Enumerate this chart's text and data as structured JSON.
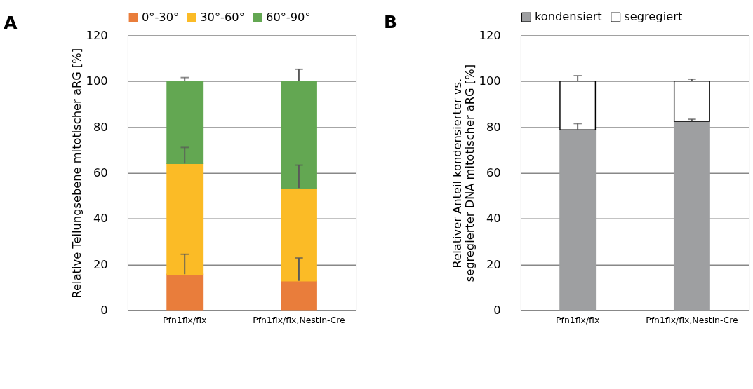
{
  "chart_data": [
    {
      "type": "bar",
      "title": "A",
      "ylabel": "Relative Teilungsebene mitotischer aRG [%]",
      "categories": [
        "Pfn1flx/flx",
        "Pfn1flx/flx,Nestin-Cre"
      ],
      "stacked": true,
      "ylim": [
        0,
        120
      ],
      "yticks": [
        0,
        20,
        40,
        60,
        80,
        100,
        120
      ],
      "grid": "y",
      "legend": "top",
      "series": [
        {
          "name": "0°-30°",
          "color": "#e97d3b",
          "values": [
            15.8,
            12.9
          ],
          "errors": [
            [
              15.8,
              24.5
            ],
            [
              12.9,
              22.9
            ]
          ]
        },
        {
          "name": "30°-60°",
          "color": "#fbbb26",
          "values": [
            48.3,
            40.5
          ],
          "errors": [
            [
              64.1,
              71.1
            ],
            [
              53.4,
              63.4
            ]
          ]
        },
        {
          "name": "60°-90°",
          "color": "#63a752",
          "values": [
            35.9,
            46.6
          ],
          "errors": [
            [
              100,
              101.6
            ],
            [
              100,
              105.2
            ]
          ]
        }
      ]
    },
    {
      "type": "bar",
      "title": "B",
      "ylabel": "Relativer Anteil kondensierter vs.\nsegregierter DNA mitotischer aRG [%]",
      "categories": [
        "Pfn1flx/flx",
        "Pfn1flx/flx,Nestin-Cre"
      ],
      "stacked": true,
      "ylim": [
        0,
        120
      ],
      "yticks": [
        0,
        20,
        40,
        60,
        80,
        100,
        120
      ],
      "grid": "y",
      "legend": "top",
      "series": [
        {
          "name": "kondensiert",
          "color": "#9e9fa1",
          "values": [
            78.8,
            82.5
          ],
          "errors": [
            [
              78.8,
              81.5
            ],
            [
              82.5,
              83.4
            ]
          ]
        },
        {
          "name": "segregiert",
          "color": "#ffffff",
          "values": [
            21.2,
            17.5
          ],
          "errors": [
            [
              100,
              102.4
            ],
            [
              100,
              100.9
            ]
          ]
        }
      ]
    }
  ]
}
